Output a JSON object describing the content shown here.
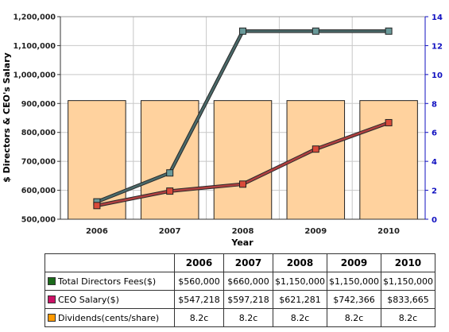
{
  "chart_data": {
    "type": "bar+line",
    "xlabel": "Year",
    "ylabel": "$ Directors & CEO's Salary",
    "ylim": [
      500000,
      1200000
    ],
    "y_ticks": [
      "500,000",
      "600,000",
      "700,000",
      "800,000",
      "900,000",
      "1,000,000",
      "1,100,000",
      "1,200,000"
    ],
    "y2lim": [
      0,
      14
    ],
    "y2_ticks": [
      "0",
      "2",
      "4",
      "6",
      "8",
      "10",
      "12",
      "14"
    ],
    "categories": [
      "2006",
      "2007",
      "2008",
      "2009",
      "2010"
    ],
    "grid": true,
    "series": [
      {
        "name": "Total Directors Fees($)",
        "type": "line",
        "axis": "left",
        "values": [
          560000,
          660000,
          1150000,
          1150000,
          1150000
        ],
        "color": "#4a6a6a",
        "marker_color": "#6a9a9a"
      },
      {
        "name": "CEO Salary($)",
        "type": "line",
        "axis": "left",
        "values": [
          547218,
          597218,
          621281,
          742366,
          833665
        ],
        "color": "#b04040",
        "marker_color": "#d94a3a"
      },
      {
        "name": "Dividends(cents/share)",
        "type": "bar",
        "axis": "right",
        "values": [
          8.2,
          8.2,
          8.2,
          8.2,
          8.2
        ],
        "color": "#ffd29e"
      }
    ]
  },
  "table": {
    "years": [
      "2006",
      "2007",
      "2008",
      "2009",
      "2010"
    ],
    "rows": [
      {
        "label": "Total Directors Fees($)",
        "color": "#1a6a1a",
        "cells": [
          "$560,000",
          "$660,000",
          "$1,150,000",
          "$1,150,000",
          "$1,150,000"
        ]
      },
      {
        "label": "CEO Salary($)",
        "color": "#cc1166",
        "cells": [
          "$547,218",
          "$597,218",
          "$621,281",
          "$742,366",
          "$833,665"
        ]
      },
      {
        "label": "Dividends(cents/share)",
        "color": "#ff9900",
        "cells": [
          "8.2c",
          "8.2c",
          "8.2c",
          "8.2c",
          "8.2c"
        ]
      }
    ]
  }
}
